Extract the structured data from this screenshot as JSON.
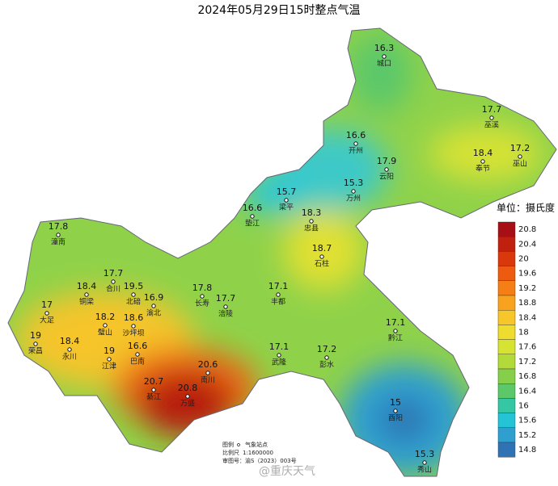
{
  "title": "2024年05月29日15时整点气温",
  "stations": [
    {
      "name": "城口",
      "value": 16.3
    },
    {
      "name": "巫溪",
      "value": 17.7
    },
    {
      "name": "开州",
      "value": 16.6
    },
    {
      "name": "奉节",
      "value": 18.4
    },
    {
      "name": "巫山",
      "value": 17.2
    },
    {
      "name": "云阳",
      "value": 17.9
    },
    {
      "name": "万州",
      "value": 15.3
    },
    {
      "name": "梁平",
      "value": 15.7
    },
    {
      "name": "垫江",
      "value": 16.6
    },
    {
      "name": "忠县",
      "value": 18.3
    },
    {
      "name": "石柱",
      "value": 18.7
    },
    {
      "name": "潼南",
      "value": 17.8
    },
    {
      "name": "合川",
      "value": 17.7
    },
    {
      "name": "铜梁",
      "value": 18.4
    },
    {
      "name": "北碚",
      "value": 19.5
    },
    {
      "name": "渝北",
      "value": 16.9
    },
    {
      "name": "大足",
      "value": 17
    },
    {
      "name": "长寿",
      "value": 17.8
    },
    {
      "name": "涪陵",
      "value": 17.7
    },
    {
      "name": "丰都",
      "value": 17.1
    },
    {
      "name": "璧山",
      "value": 18.2
    },
    {
      "name": "沙坪坝",
      "value": 18.6
    },
    {
      "name": "荣昌",
      "value": 19
    },
    {
      "name": "永川",
      "value": 18.4
    },
    {
      "name": "黔江",
      "value": 17.1
    },
    {
      "name": "江津",
      "value": 19
    },
    {
      "name": "巴南",
      "value": 16.6
    },
    {
      "name": "武隆",
      "value": 17.1
    },
    {
      "name": "彭水",
      "value": 17.2
    },
    {
      "name": "南川",
      "value": 20.6
    },
    {
      "name": "綦江",
      "value": 20.7
    },
    {
      "name": "万盛",
      "value": 20.8
    },
    {
      "name": "酉阳",
      "value": 15
    },
    {
      "name": "秀山",
      "value": 15.3
    }
  ],
  "legend": {
    "title": "单位：摄氏度",
    "ticks": [
      20.8,
      20.4,
      20,
      19.6,
      19.2,
      18.8,
      18.4,
      18,
      17.6,
      17.2,
      16.8,
      16.4,
      16,
      15.6,
      15.2,
      14.8
    ],
    "colors": [
      "#a50f15",
      "#c0200e",
      "#d9380c",
      "#ec5b10",
      "#f57e17",
      "#f9a21f",
      "#f7c62a",
      "#eedd2e",
      "#d6e332",
      "#b2db3a",
      "#86cf4a",
      "#5cc86a",
      "#35c6a4",
      "#24c3d6",
      "#2f9fd0",
      "#2f73b5"
    ]
  },
  "footer": {
    "legend_label": "图例",
    "station_label": "气象站点",
    "scale_label": "比例尺",
    "scale": "1:1600000",
    "map_number": "审图号：渝S（2023）003号",
    "watermark": "@重庆天气"
  }
}
